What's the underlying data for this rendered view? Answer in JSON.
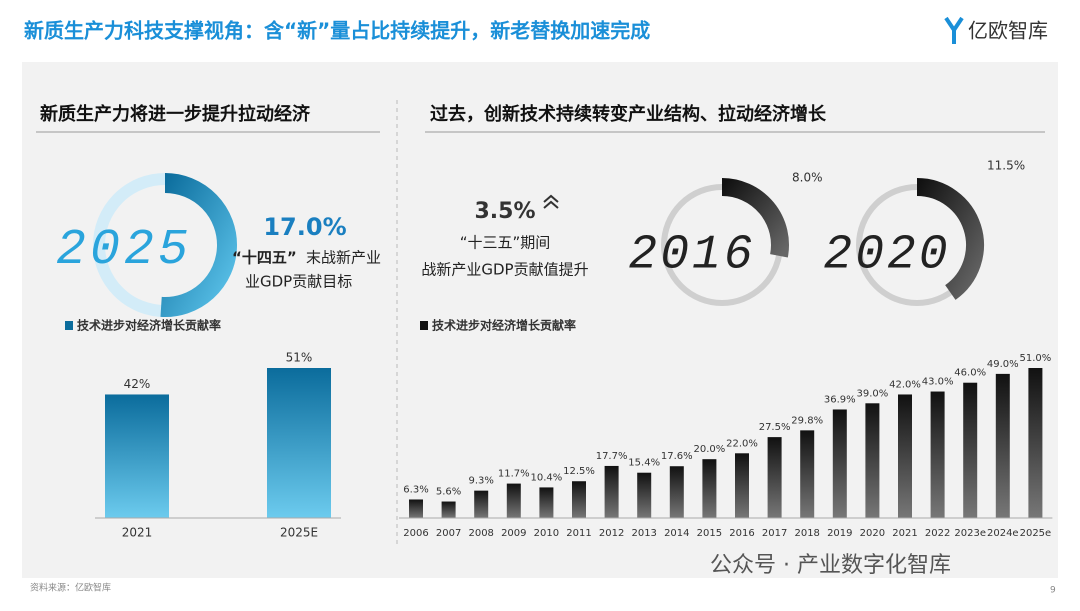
{
  "header": {
    "title": "新质生产力科技支撑视角：含“新”量占比持续提升，新老替换加速完成",
    "logo": "亿欧智库"
  },
  "left": {
    "heading": "新质生产力将进一步提升拉动经济",
    "ring": {
      "year": "2025",
      "value": 17,
      "value_label": "17.0%",
      "note_bold": "“十四五”",
      "note_lines": [
        "末战新产业",
        "业GDP贡献目标"
      ]
    }
  },
  "right": {
    "heading": "过去，创新技术持续转变产业结构、拉动经济增长",
    "increase": {
      "label": "3.5%",
      "lines": [
        "“十三五”期间",
        "战新产业GDP贡献值提升"
      ]
    },
    "rings": [
      {
        "year": "2016",
        "value": 8,
        "value_label": "8.0%"
      },
      {
        "year": "2020",
        "value": 11.5,
        "value_label": "11.5%"
      }
    ]
  },
  "chart_data": [
    {
      "type": "bar",
      "categories": [
        "2021",
        "2025E"
      ],
      "series": [
        {
          "name": "技术进步对经济增长贡献率",
          "color": "#0b6c9c",
          "values": [
            42,
            51
          ],
          "value_labels": [
            "42%",
            "51%"
          ]
        }
      ]
    },
    {
      "type": "bar",
      "categories": [
        "2006",
        "2007",
        "2008",
        "2009",
        "2010",
        "2011",
        "2012",
        "2013",
        "2014",
        "2015",
        "2016",
        "2017",
        "2018",
        "2019",
        "2020",
        "2021",
        "2022",
        "2023e",
        "2024e",
        "2025e"
      ],
      "series": [
        {
          "name": "技术进步对经济增长贡献率",
          "color": "#111111",
          "values": [
            6.3,
            5.6,
            9.3,
            11.7,
            10.4,
            12.5,
            17.7,
            15.4,
            17.6,
            20,
            22,
            27.5,
            29.8,
            36.9,
            39,
            42,
            43,
            46,
            49,
            51
          ],
          "value_labels": [
            "6.3%",
            "5.6%",
            "9.3%",
            "11.7%",
            "10.4%",
            "12.5%",
            "17.7%",
            "15.4%",
            "17.6%",
            "20.0%",
            "22.0%",
            "27.5%",
            "29.8%",
            "36.9%",
            "39.0%",
            "42.0%",
            "43.0%",
            "46.0%",
            "49.0%",
            "51.0%"
          ]
        }
      ]
    }
  ],
  "footer": {
    "source": "资料来源：亿欧智库",
    "page": "9",
    "watermark": "公众号 · 产业数字化智库"
  }
}
